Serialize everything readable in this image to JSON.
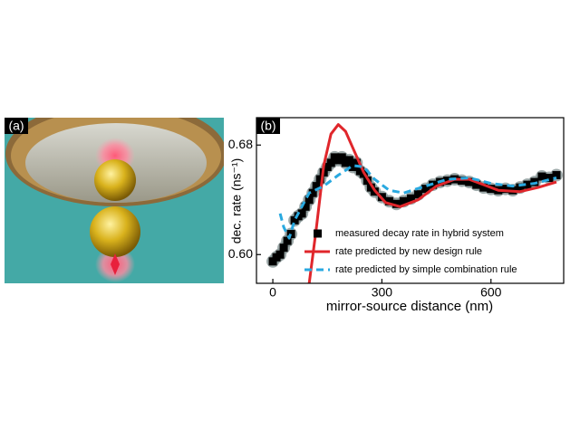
{
  "panel_labels": [
    "(a)",
    "(b)"
  ],
  "chart_data": {
    "type": "scatter",
    "xlabel": "mirror-source distance (nm)",
    "ylabel": "dec. rate (ns⁻¹)",
    "xlim": [
      -45,
      800
    ],
    "ylim": [
      0.579,
      0.7
    ],
    "xticks": [
      0,
      300,
      600
    ],
    "yticks": [
      {
        "value": 0.6,
        "label": "0.60"
      },
      0.68
    ],
    "legend": "lower right",
    "series": [
      {
        "name": "measured decay rate in hybrid system",
        "color": "#000000",
        "mode": "markers",
        "x": [
          0,
          10,
          20,
          30,
          40,
          50,
          60,
          70,
          80,
          90,
          100,
          110,
          120,
          130,
          140,
          150,
          160,
          170,
          180,
          190,
          200,
          210,
          220,
          230,
          240,
          250,
          260,
          270,
          280,
          300,
          320,
          340,
          360,
          380,
          400,
          420,
          440,
          460,
          480,
          500,
          520,
          540,
          560,
          580,
          600,
          620,
          640,
          660,
          680,
          700,
          720,
          740,
          760,
          780
        ],
        "y": [
          0.595,
          0.598,
          0.6,
          0.605,
          0.61,
          0.615,
          0.625,
          0.628,
          0.63,
          0.635,
          0.64,
          0.645,
          0.65,
          0.655,
          0.66,
          0.664,
          0.667,
          0.671,
          0.669,
          0.671,
          0.667,
          0.669,
          0.664,
          0.667,
          0.661,
          0.659,
          0.654,
          0.649,
          0.646,
          0.642,
          0.639,
          0.637,
          0.639,
          0.641,
          0.644,
          0.648,
          0.651,
          0.653,
          0.654,
          0.655,
          0.654,
          0.653,
          0.651,
          0.649,
          0.648,
          0.647,
          0.648,
          0.647,
          0.649,
          0.651,
          0.653,
          0.657,
          0.656,
          0.658
        ]
      },
      {
        "name": "rate predicted by new design rule",
        "color": "#e0262b",
        "mode": "line",
        "dash": false,
        "x": [
          100,
          120,
          140,
          160,
          180,
          200,
          220,
          250,
          280,
          310,
          350,
          400,
          450,
          500,
          540,
          580,
          620,
          680,
          730,
          780
        ],
        "y": [
          0.579,
          0.62,
          0.665,
          0.688,
          0.695,
          0.69,
          0.678,
          0.66,
          0.647,
          0.638,
          0.635,
          0.64,
          0.65,
          0.655,
          0.655,
          0.651,
          0.647,
          0.646,
          0.649,
          0.653
        ]
      },
      {
        "name": "rate predicted by simple combination rule",
        "color": "#29a9e0",
        "mode": "line",
        "dash": true,
        "x": [
          20,
          30,
          45,
          60,
          80,
          100,
          140,
          180,
          220,
          250,
          280,
          320,
          360,
          420,
          480,
          540,
          600,
          660,
          720,
          780
        ],
        "y": [
          0.63,
          0.62,
          0.612,
          0.625,
          0.635,
          0.645,
          0.65,
          0.658,
          0.665,
          0.664,
          0.655,
          0.647,
          0.645,
          0.65,
          0.655,
          0.656,
          0.652,
          0.65,
          0.652,
          0.656
        ]
      }
    ]
  }
}
